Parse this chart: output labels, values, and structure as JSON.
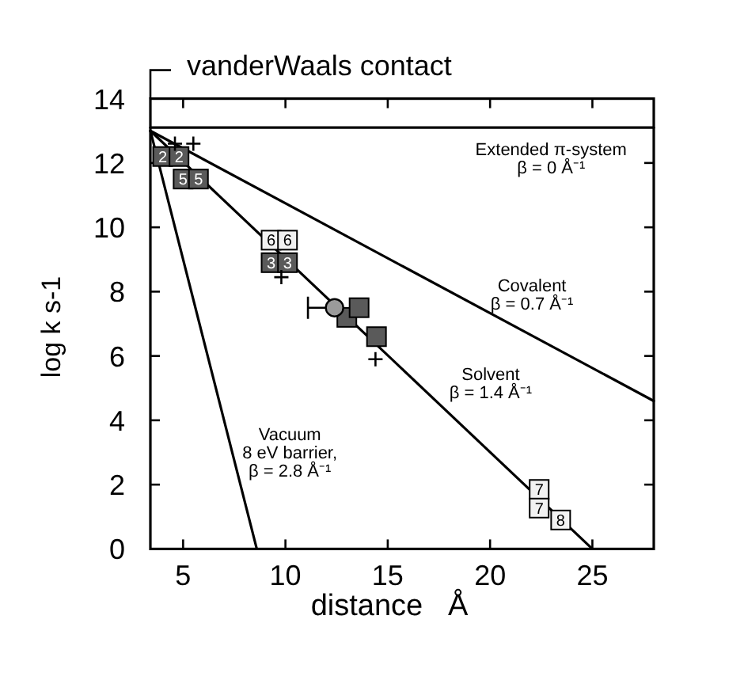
{
  "chart_data": {
    "type": "line",
    "xlabel": "distance   Å",
    "ylabel": "log k s-1",
    "xlim": [
      3.4,
      28
    ],
    "ylim": [
      0,
      14
    ],
    "xticks": [
      5,
      10,
      15,
      20,
      25
    ],
    "yticks": [
      0,
      2,
      4,
      6,
      8,
      10,
      12,
      14
    ],
    "annotations": [
      "vanderWaals contact",
      {
        "text": "2",
        "x": 4.0,
        "y": 12.2
      },
      {
        "text": "2",
        "x": 4.8,
        "y": 12.2
      },
      {
        "text": "5",
        "x": 5.0,
        "y": 11.5
      },
      {
        "text": "5",
        "x": 5.75,
        "y": 11.5
      },
      {
        "text": "6",
        "x": 9.3,
        "y": 9.6
      },
      {
        "text": "6",
        "x": 10.1,
        "y": 9.6
      },
      {
        "text": "3",
        "x": 9.3,
        "y": 8.9
      },
      {
        "text": "3",
        "x": 10.1,
        "y": 8.9
      },
      {
        "text": "7",
        "x": 22.4,
        "y": 1.85
      },
      {
        "text": "7",
        "x": 22.4,
        "y": 1.27
      },
      {
        "text": "8",
        "x": 23.45,
        "y": 0.9
      }
    ],
    "series": [
      {
        "name": "Extended π-system\nβ = 0 Å⁻¹",
        "color": "#000000",
        "x": [
          3.4,
          28
        ],
        "values": [
          13.1,
          13.1
        ]
      },
      {
        "name": "Covalent\nβ = 0.7 Å⁻¹",
        "color": "#000000",
        "x": [
          3.4,
          28
        ],
        "values": [
          13,
          4.6
        ]
      },
      {
        "name": "Solvent\nβ = 1.4 Å⁻¹",
        "color": "#000000",
        "x": [
          3.4,
          25
        ],
        "values": [
          13,
          0
        ]
      },
      {
        "name": "Vacuum\n8 eV barrier,\nβ = 2.8 Å⁻¹",
        "color": "#000000",
        "x": [
          3.4,
          8.6
        ],
        "values": [
          13,
          0
        ]
      },
      {
        "type": "scatter",
        "marker": "square",
        "x": [
          4.0,
          4.8,
          5.0,
          5.75,
          9.3,
          10.1,
          9.3,
          10.1,
          13.0,
          13.6,
          14.45,
          22.4,
          22.4,
          23.45
        ],
        "values": [
          12.2,
          12.2,
          11.5,
          11.5,
          9.6,
          9.6,
          8.9,
          8.9,
          7.2,
          7.5,
          6.6,
          1.85,
          1.27,
          0.9
        ],
        "colors": [
          "#5a5a5a",
          "#5a5a5a",
          "#5a5a5a",
          "#5a5a5a",
          "#f2f2f2",
          "#f2f2f2",
          "#5a5a5a",
          "#5a5a5a",
          "#5a5a5a",
          "#5a5a5a",
          "#5a5a5a",
          "#f2f2f2",
          "#f2f2f2",
          "#f2f2f2"
        ]
      },
      {
        "type": "scatter",
        "marker": "circle",
        "color": "#9a9a9a",
        "x": [
          12.4
        ],
        "values": [
          7.5
        ],
        "xerrors": [
          [
            11.1,
            12.4
          ]
        ]
      },
      {
        "type": "scatter",
        "marker": "cross",
        "color": "#000000",
        "x": [
          4.6,
          5.5,
          9.8,
          14.4
        ],
        "values": [
          12.6,
          12.6,
          8.45,
          5.9
        ]
      }
    ]
  }
}
